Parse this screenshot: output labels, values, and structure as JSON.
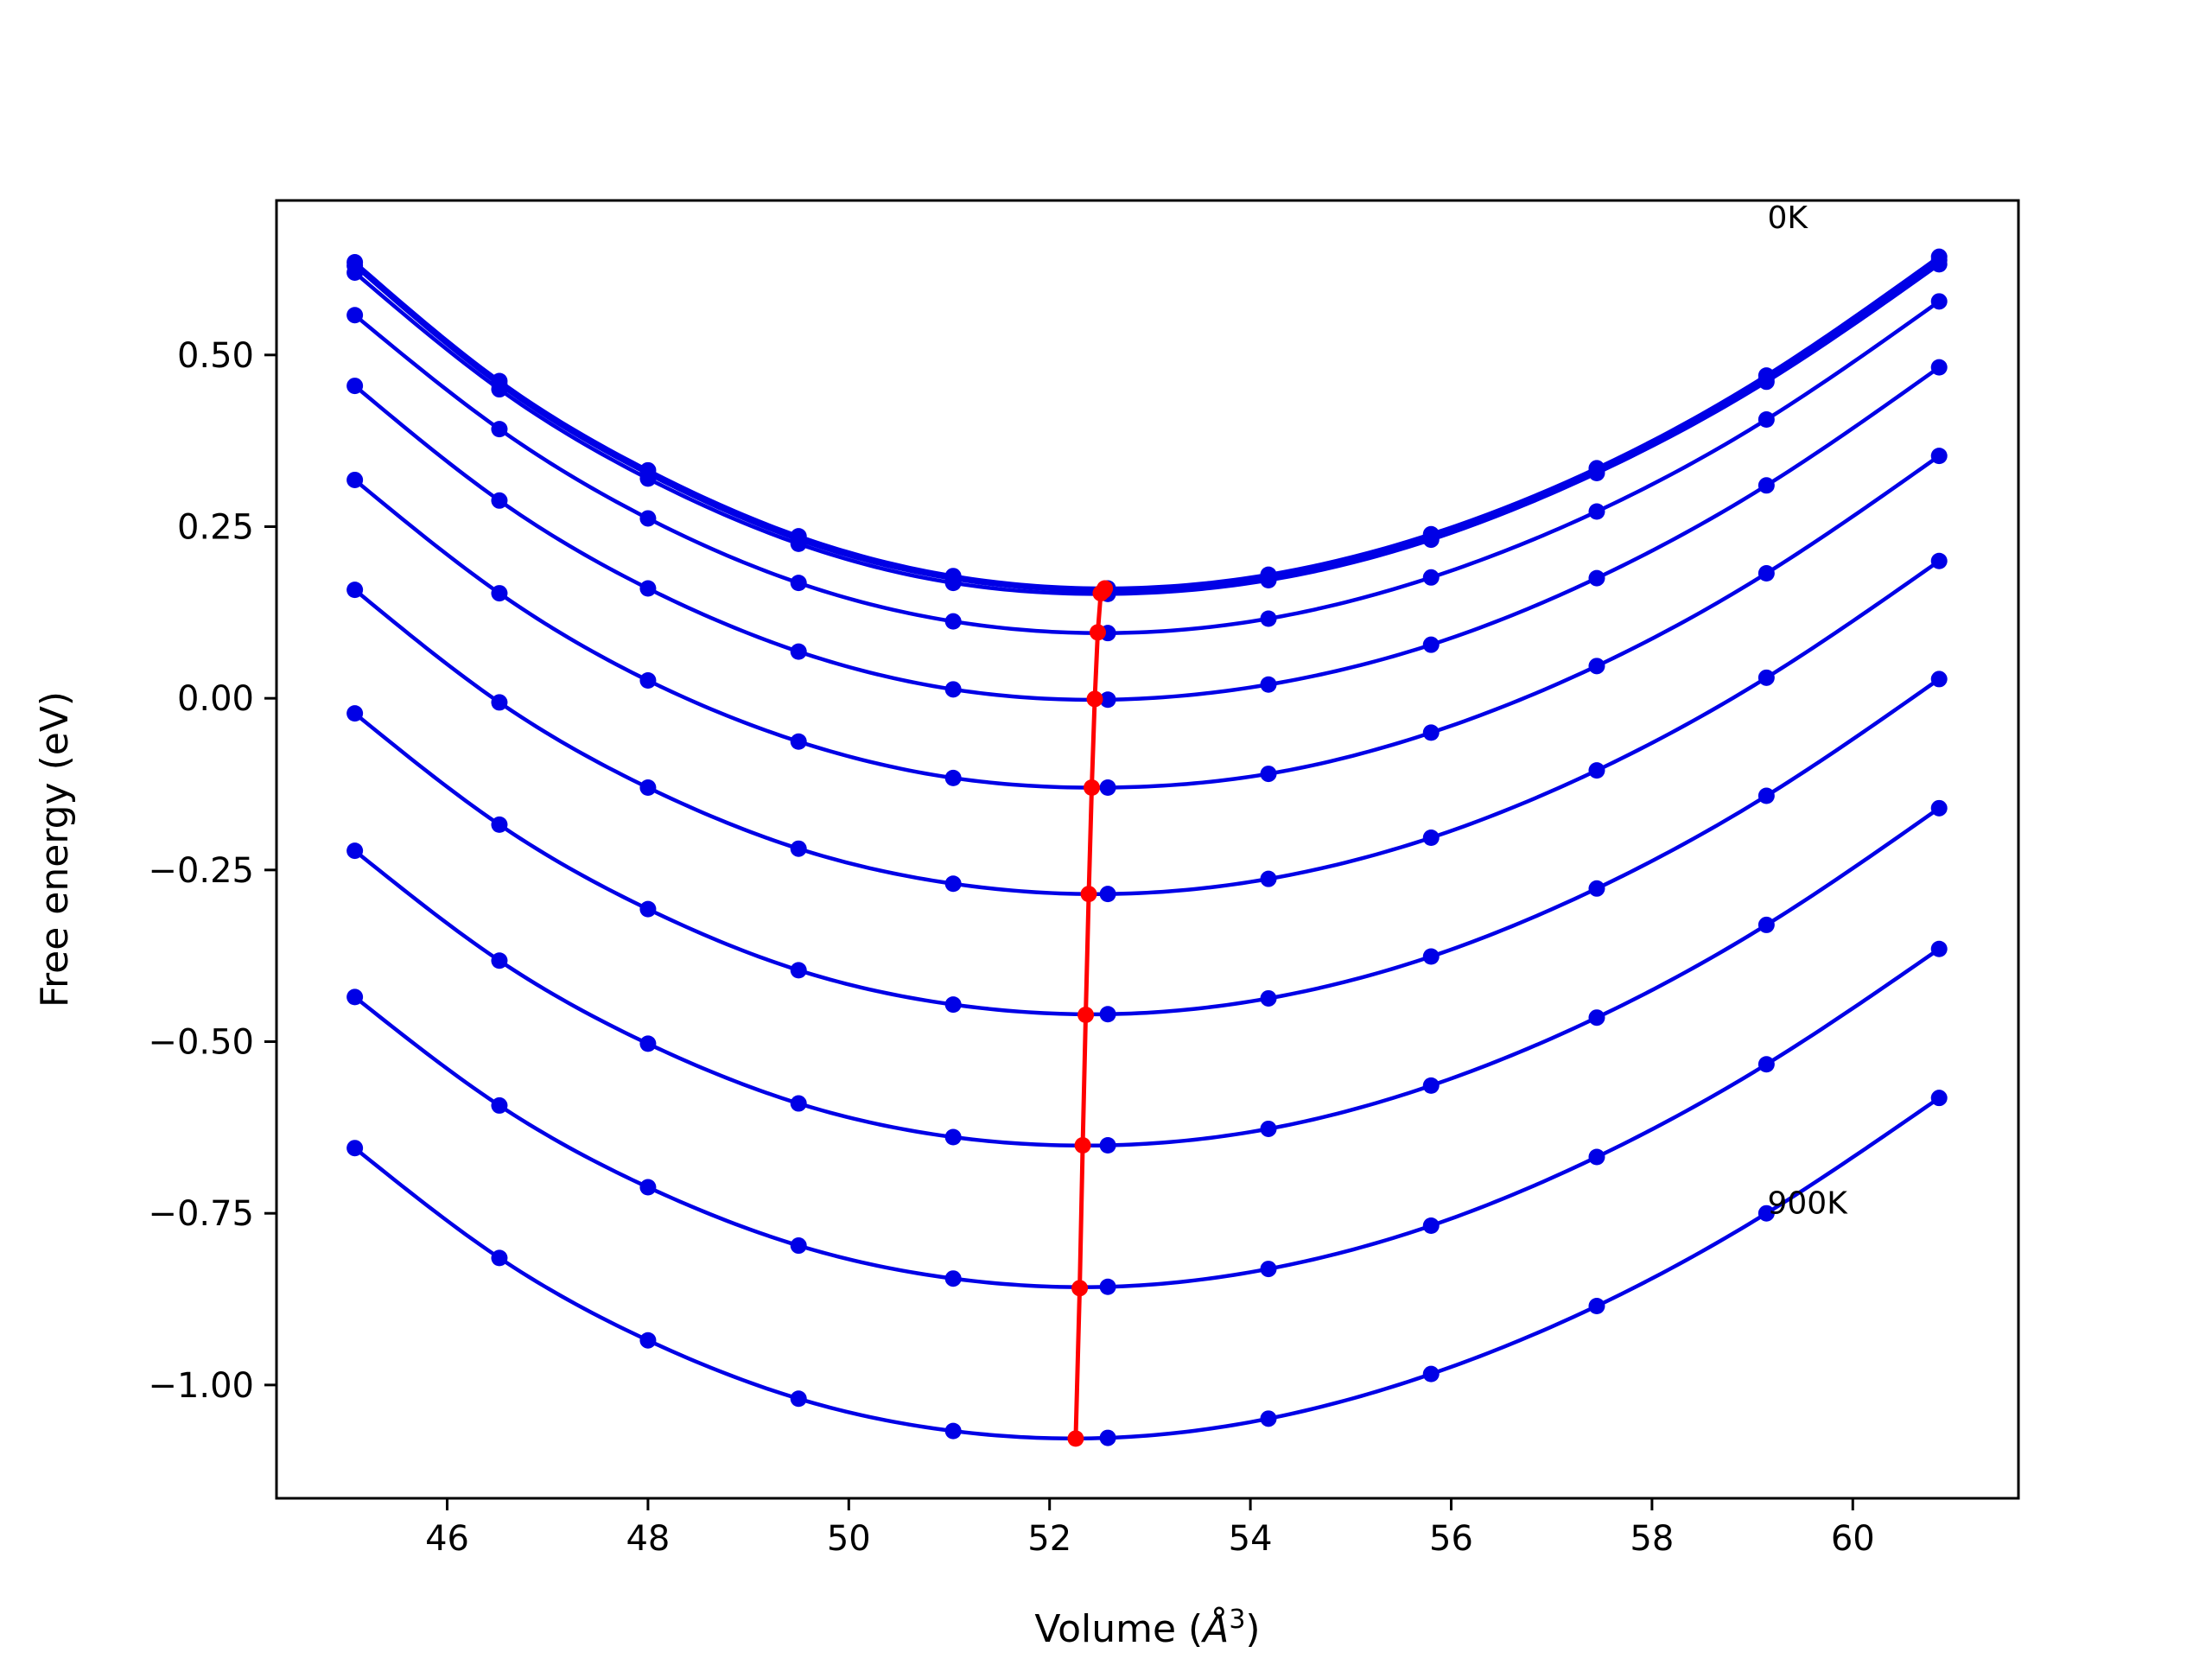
{
  "chart_data": {
    "type": "line",
    "xlabel_main": "Volume (",
    "xlabel_unit": "Å",
    "xlabel_sup": "3",
    "xlabel_close": ")",
    "ylabel": "Free energy (eV)",
    "xlim": [
      44.3,
      61.65
    ],
    "ylim": [
      -1.165,
      0.725
    ],
    "xticks": [
      46,
      48,
      50,
      52,
      54,
      56,
      58,
      60
    ],
    "yticks": [
      0.5,
      0.25,
      0.0,
      -0.25,
      -0.5,
      -0.75,
      -1.0
    ],
    "ytick_labels": [
      "0.50",
      "0.25",
      "0.00",
      "−0.25",
      "−0.50",
      "−0.75",
      "−1.00"
    ],
    "grid": false,
    "legend": "none",
    "colors": {
      "curves": "#0000e6",
      "minima": "#ff0000"
    },
    "annotations": [
      {
        "text": "0K",
        "x": 59.15,
        "y": 0.7
      },
      {
        "text": "900K",
        "x": 59.15,
        "y": -0.735
      }
    ],
    "x": [
      45.08,
      46.52,
      48.0,
      49.5,
      51.04,
      52.58,
      54.18,
      55.8,
      57.45,
      59.14,
      60.86
    ],
    "series": [
      {
        "values": [
          0.635,
          0.462,
          0.332,
          0.236,
          0.178,
          0.16,
          0.18,
          0.239,
          0.335,
          0.47,
          0.643
        ]
      },
      {
        "values": [
          0.63,
          0.457,
          0.327,
          0.231,
          0.174,
          0.157,
          0.177,
          0.236,
          0.332,
          0.466,
          0.638
        ]
      },
      {
        "values": [
          0.62,
          0.45,
          0.32,
          0.225,
          0.168,
          0.152,
          0.172,
          0.231,
          0.328,
          0.461,
          0.632
        ]
      },
      {
        "values": [
          0.558,
          0.392,
          0.262,
          0.168,
          0.112,
          0.095,
          0.116,
          0.176,
          0.272,
          0.406,
          0.578
        ]
      },
      {
        "values": [
          0.455,
          0.288,
          0.16,
          0.068,
          0.013,
          -0.002,
          0.02,
          0.078,
          0.175,
          0.31,
          0.482
        ]
      },
      {
        "values": [
          0.318,
          0.153,
          0.026,
          -0.063,
          -0.116,
          -0.13,
          -0.11,
          -0.05,
          0.047,
          0.182,
          0.353
        ]
      },
      {
        "values": [
          0.158,
          -0.006,
          -0.13,
          -0.219,
          -0.27,
          -0.285,
          -0.263,
          -0.203,
          -0.105,
          0.03,
          0.2
        ]
      },
      {
        "values": [
          -0.022,
          -0.184,
          -0.307,
          -0.396,
          -0.446,
          -0.46,
          -0.437,
          -0.376,
          -0.277,
          -0.142,
          0.028
        ]
      },
      {
        "values": [
          -0.222,
          -0.382,
          -0.503,
          -0.59,
          -0.639,
          -0.651,
          -0.627,
          -0.564,
          -0.465,
          -0.33,
          -0.16
        ]
      },
      {
        "values": [
          -0.435,
          -0.593,
          -0.712,
          -0.797,
          -0.845,
          -0.857,
          -0.831,
          -0.768,
          -0.668,
          -0.533,
          -0.365
        ]
      },
      {
        "values": [
          -0.655,
          -0.815,
          -0.935,
          -1.02,
          -1.067,
          -1.077,
          -1.049,
          -0.984,
          -0.885,
          -0.75,
          -0.582
        ]
      }
    ],
    "minima": {
      "x": [
        52.55,
        52.54,
        52.51,
        52.48,
        52.45,
        52.42,
        52.39,
        52.36,
        52.33,
        52.3,
        52.26
      ],
      "y": [
        0.16,
        0.157,
        0.153,
        0.096,
        -0.001,
        -0.13,
        -0.285,
        -0.461,
        -0.651,
        -0.859,
        -1.078
      ]
    }
  }
}
